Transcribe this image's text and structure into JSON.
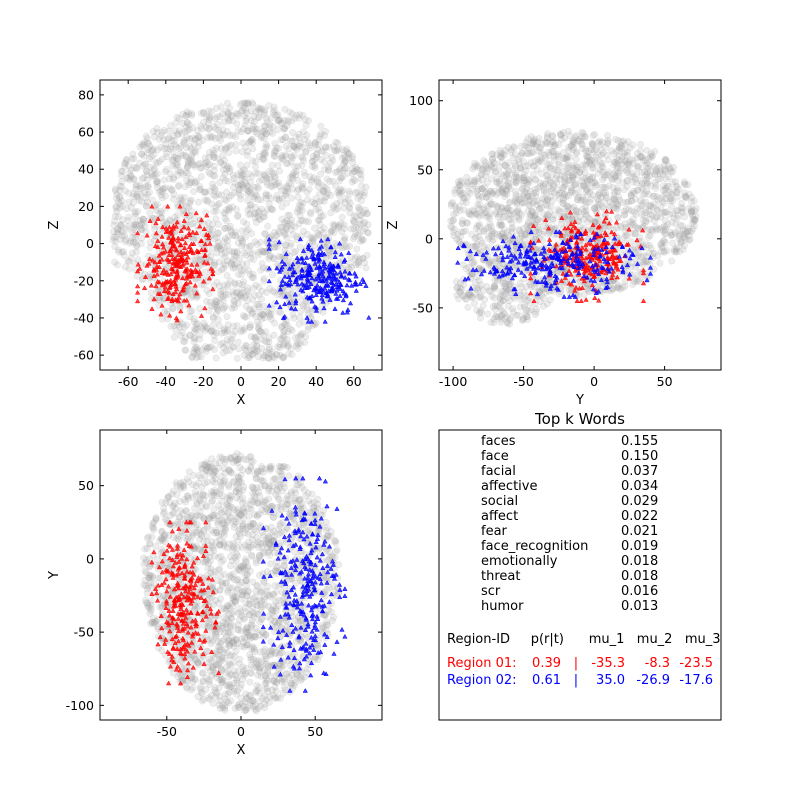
{
  "chart_data": [
    {
      "type": "scatter",
      "xlabel": "X",
      "ylabel": "Z",
      "xlim": [
        -75,
        75
      ],
      "ylim": [
        -68,
        88
      ],
      "xticks": [
        -60,
        -40,
        -20,
        0,
        20,
        40,
        60
      ],
      "yticks": [
        -60,
        -40,
        -20,
        0,
        20,
        40,
        60,
        80
      ],
      "grid": false,
      "series": [
        {
          "color": "#999999",
          "marker": "circle",
          "shape": "brain-coronal",
          "extent": {
            "x": [
              -68,
              68
            ],
            "y": [
              -62,
              76
            ]
          }
        },
        {
          "color": "#ff0000",
          "marker": "triangle",
          "extent": {
            "x": [
              -55,
              -15
            ],
            "y": [
              -42,
              20
            ]
          },
          "center": [
            -35.3,
            -23.5
          ]
        },
        {
          "color": "#0000ff",
          "marker": "triangle",
          "extent": {
            "x": [
              15,
              68
            ],
            "y": [
              -42,
              5
            ]
          },
          "center": [
            35.0,
            -17.6
          ]
        }
      ]
    },
    {
      "type": "scatter",
      "xlabel": "Y",
      "ylabel": "Z",
      "xlim": [
        -110,
        90
      ],
      "ylim": [
        -95,
        115
      ],
      "xticks": [
        -100,
        -50,
        0,
        50
      ],
      "yticks": [
        -50,
        0,
        50,
        100
      ],
      "grid": false,
      "series": [
        {
          "color": "#999999",
          "marker": "circle",
          "shape": "brain-sagittal",
          "extent": {
            "x": [
              -103,
              73
            ],
            "y": [
              -62,
              78
            ]
          }
        },
        {
          "color": "#ff0000",
          "marker": "triangle",
          "extent": {
            "x": [
              -45,
              35
            ],
            "y": [
              -45,
              20
            ]
          },
          "center": [
            -8.3,
            -23.5
          ]
        },
        {
          "color": "#0000ff",
          "marker": "triangle",
          "extent": {
            "x": [
              -100,
              40
            ],
            "y": [
              -42,
              5
            ]
          },
          "center": [
            -26.9,
            -17.6
          ]
        }
      ]
    },
    {
      "type": "scatter",
      "xlabel": "X",
      "ylabel": "Y",
      "xlim": [
        -95,
        95
      ],
      "ylim": [
        -110,
        88
      ],
      "xticks": [
        -50,
        0,
        50
      ],
      "yticks": [
        -100,
        -50,
        0,
        50
      ],
      "grid": false,
      "series": [
        {
          "color": "#999999",
          "marker": "circle",
          "shape": "brain-axial",
          "extent": {
            "x": [
              -70,
              70
            ],
            "y": [
              -105,
              72
            ]
          }
        },
        {
          "color": "#ff0000",
          "marker": "triangle",
          "extent": {
            "x": [
              -60,
              -15
            ],
            "y": [
              -85,
              25
            ]
          },
          "center": [
            -35.3,
            -8.3
          ]
        },
        {
          "color": "#0000ff",
          "marker": "triangle",
          "extent": {
            "x": [
              15,
              70
            ],
            "y": [
              -90,
              55
            ]
          },
          "center": [
            35.0,
            -26.9
          ]
        }
      ]
    },
    {
      "type": "table",
      "title": "Top k Words",
      "words": [
        {
          "word": "faces",
          "p": "0.155"
        },
        {
          "word": "face",
          "p": "0.150"
        },
        {
          "word": "facial",
          "p": "0.037"
        },
        {
          "word": "affective",
          "p": "0.034"
        },
        {
          "word": "social",
          "p": "0.029"
        },
        {
          "word": "affect",
          "p": "0.022"
        },
        {
          "word": "fear",
          "p": "0.021"
        },
        {
          "word": "face_recognition",
          "p": "0.019"
        },
        {
          "word": "emotionally",
          "p": "0.018"
        },
        {
          "word": "threat",
          "p": "0.018"
        },
        {
          "word": "scr",
          "p": "0.016"
        },
        {
          "word": "humor",
          "p": "0.013"
        }
      ],
      "region_header": "Region-ID     p(r|t)      mu_1   mu_2   mu_3",
      "regions": [
        {
          "id": "Region 01:",
          "p": "0.39",
          "sep": "|",
          "mu_1": "-35.3",
          "mu_2": "-8.3",
          "mu_3": "-23.5",
          "color": "#ff0000"
        },
        {
          "id": "Region 02:",
          "p": "0.61",
          "sep": "|",
          "mu_1": "35.0",
          "mu_2": "-26.9",
          "mu_3": "-17.6",
          "color": "#0000ff"
        }
      ]
    }
  ]
}
